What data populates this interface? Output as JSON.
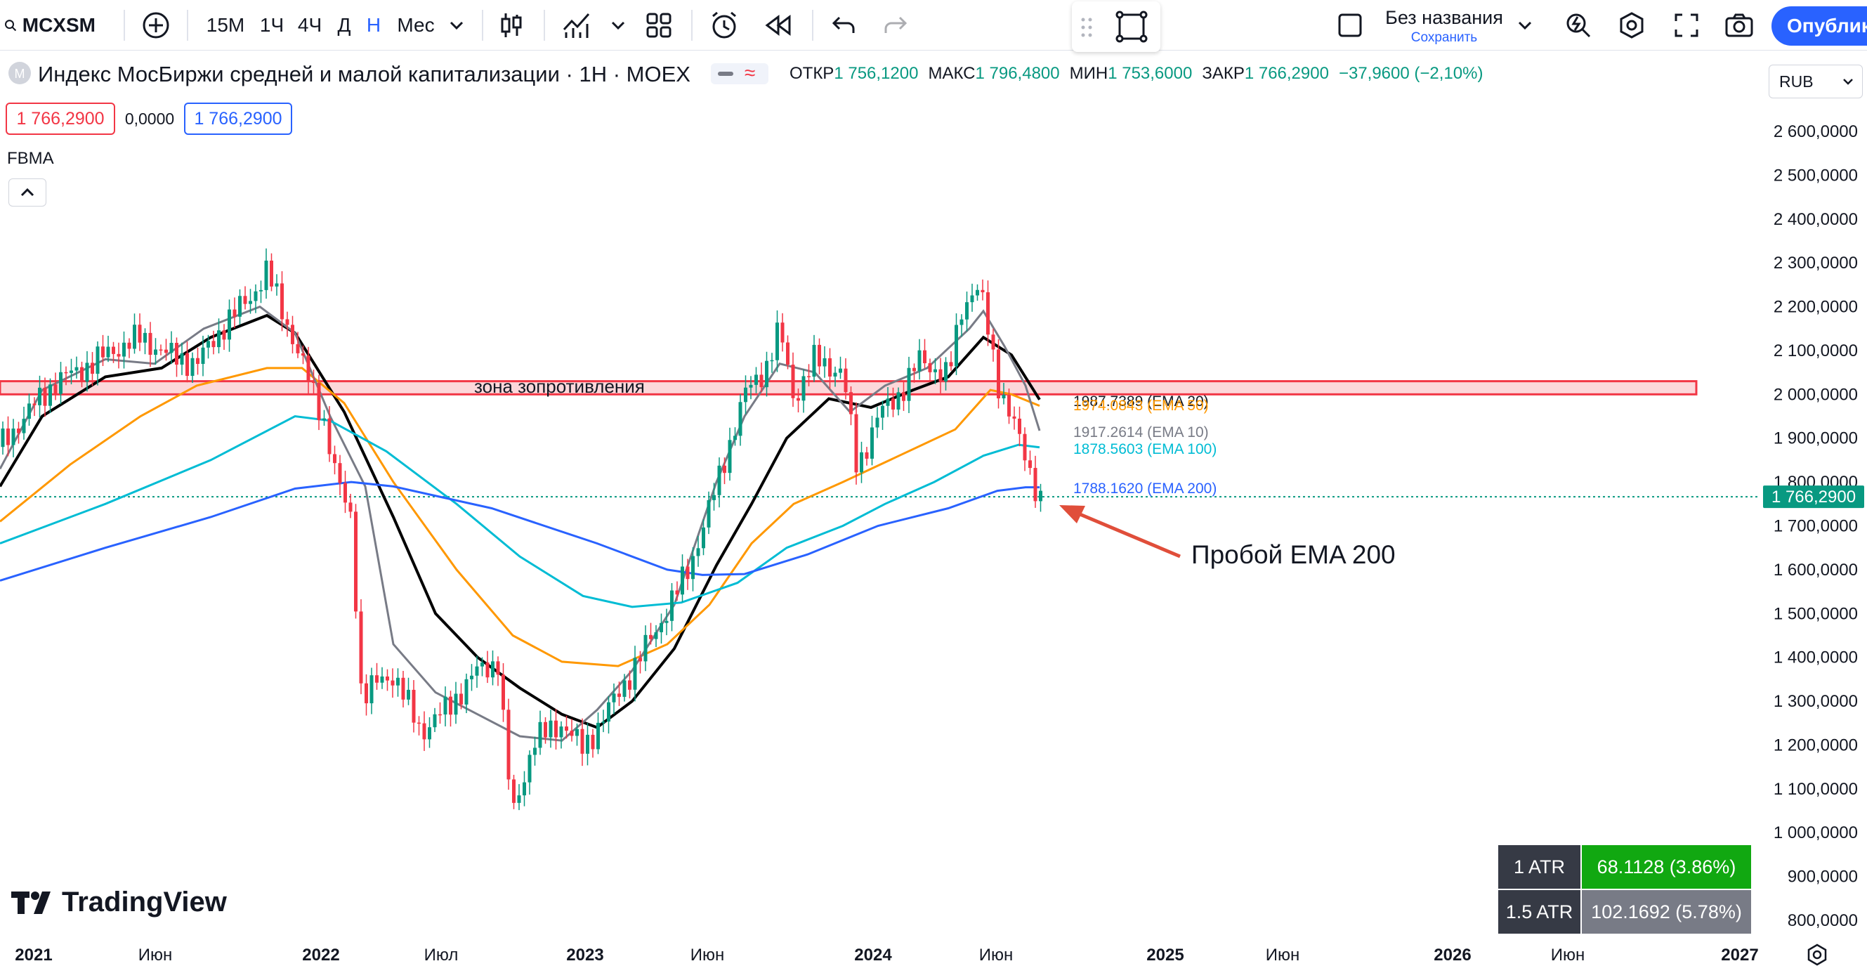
{
  "toolbar": {
    "symbol": "MCXSM",
    "timeframes": [
      "15M",
      "1Ч",
      "4Ч",
      "Д",
      "Н",
      "Мес"
    ],
    "active_timeframe": "Н",
    "layout_name": "Без названия",
    "layout_save": "Сохранить",
    "publish": "Опублик"
  },
  "legend": {
    "title": "Индекс МосБиржи средней и малой капитализации · 1Н · MOEX",
    "open_label": "ОТКР",
    "open": "1 756,1200",
    "high_label": "МАКС",
    "high": "1 796,4800",
    "low_label": "МИН",
    "low": "1 753,6000",
    "close_label": "ЗАКР",
    "close": "1 766,2900",
    "change": "−37,9600 (−2,10%)",
    "bid": "1 766,2900",
    "spread": "0,0000",
    "ask": "1 766,2900",
    "indicator": "FBMA",
    "currency": "RUB"
  },
  "annotations": {
    "zone": "зона зопротивления",
    "breakout": "Пробой EMA 200"
  },
  "atr": [
    {
      "label": "1 ATR",
      "value": "68.1128 (3.86%)"
    },
    {
      "label": "1.5 ATR",
      "value": "102.1692 (5.78%)"
    }
  ],
  "watermark": "TradingView",
  "chart_data": {
    "type": "candlestick",
    "y_ticks": [
      "2 600,0000",
      "2 500,0000",
      "2 400,0000",
      "2 300,0000",
      "2 200,0000",
      "2 100,0000",
      "2 000,0000",
      "1 900,0000",
      "1 800,0000",
      "1 700,0000",
      "1 600,0000",
      "1 500,0000",
      "1 400,0000",
      "1 300,0000",
      "1 200,0000",
      "1 100,0000",
      "1 000,0000",
      "900,0000",
      "800,0000"
    ],
    "ylim": [
      800,
      2600
    ],
    "x_ticks": [
      "2021",
      "Июн",
      "2022",
      "Июл",
      "2023",
      "Июн",
      "2024",
      "Июн",
      "2025",
      "Июн",
      "2026",
      "Июн",
      "2027"
    ],
    "last_price_label": "1 766,2900",
    "last_price": 1766.29,
    "resistance_zone": [
      2000,
      2030
    ],
    "series": [
      {
        "name": "EMA 20",
        "label": "1987.7389 (EMA 20)",
        "color": "#000000",
        "last": 1987.7389
      },
      {
        "name": "EMA 50",
        "label": "1974.0843 (EMA 50)",
        "color": "#ff9800",
        "last": 1974.0843
      },
      {
        "name": "EMA 10",
        "label": "1917.2614 (EMA 10)",
        "color": "#787b86",
        "last": 1917.2614
      },
      {
        "name": "EMA 100",
        "label": "1878.5603 (EMA 100)",
        "color": "#00bcd4",
        "last": 1878.5603
      },
      {
        "name": "EMA 200",
        "label": "1788.1620 (EMA 200)",
        "color": "#2962ff",
        "last": 1788.162
      }
    ]
  }
}
